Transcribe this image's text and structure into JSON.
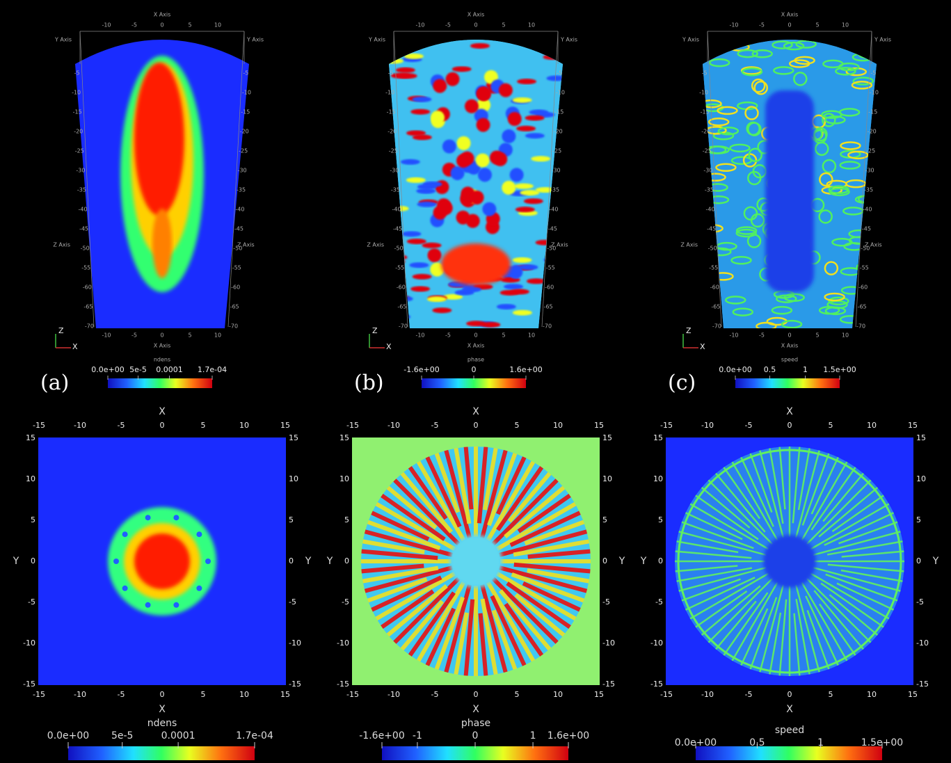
{
  "top_axes": {
    "x_title": "X Axis",
    "y_title": "Y Axis",
    "z_title": "Z Axis",
    "x_ticks": [
      "-10",
      "-5",
      "0",
      "5",
      "10"
    ],
    "z_ticks": [
      "-5",
      "-10",
      "-15",
      "-20",
      "-25",
      "-30",
      "-35",
      "-40",
      "-45",
      "-50",
      "-55",
      "-60",
      "-65",
      "-70"
    ],
    "gizmo_z": "Z",
    "gizmo_x": "X"
  },
  "top_panels": [
    {
      "label": "(a)",
      "colorbar": {
        "title": "ndens",
        "ticks": [
          "0.0e+00",
          "5e-5",
          "0.0001",
          "1.7e-04"
        ]
      }
    },
    {
      "label": "(b)",
      "colorbar": {
        "title": "phase",
        "ticks": [
          "-1.6e+00",
          "0",
          "1.6e+00"
        ]
      }
    },
    {
      "label": "(c)",
      "colorbar": {
        "title": "speed",
        "ticks": [
          "0.0e+00",
          "0.5",
          "1",
          "1.5e+00"
        ]
      }
    }
  ],
  "bottom_axes": {
    "x_title": "X",
    "y_title": "Y",
    "ticks": [
      "-15",
      "-10",
      "-5",
      "0",
      "5",
      "10",
      "15"
    ]
  },
  "bottom_panels": [
    {
      "colorbar": {
        "title": "ndens",
        "ticks": [
          "0.0e+00",
          "5e-5",
          "0.0001",
          "1.7e-04"
        ]
      }
    },
    {
      "colorbar": {
        "title": "phase",
        "ticks": [
          "-1.6e+00",
          "-1",
          "0",
          "1",
          "1.6e+00"
        ]
      }
    },
    {
      "colorbar": {
        "title": "speed",
        "ticks": [
          "0.0e+00",
          "0.5",
          "1",
          "1.5e+00"
        ]
      }
    }
  ]
}
